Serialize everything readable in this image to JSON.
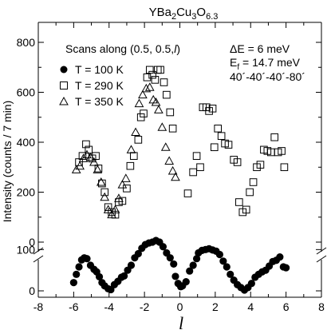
{
  "chart_data": {
    "type": "scatter",
    "title": {
      "base": "YBa",
      "s1": "2",
      "mid1": "Cu",
      "s2": "3",
      "mid2": "O",
      "s3": "6.3"
    },
    "xlabel": "l",
    "ylabel": "Intensity (counts / 7 min)",
    "xlim": [
      -8,
      8
    ],
    "x_ticks": [
      -8,
      -6,
      -4,
      -2,
      0,
      2,
      4,
      6,
      8
    ],
    "upper_panel": {
      "ylim": [
        0,
        880
      ],
      "y_ticks": [
        0,
        200,
        400,
        600,
        800
      ]
    },
    "lower_panel": {
      "ylim": [
        0,
        120
      ],
      "y_ticks": [
        0,
        100
      ]
    },
    "annotations": {
      "scan": "Scans along (0.5, 0.5,",
      "scan_l": "l",
      "scan_end": ")",
      "de_label": "ΔE = 6 meV",
      "ef_base": "E",
      "ef_sub": "f",
      "ef_rest": "  = 14.7 meV",
      "collim": "40´-40´-40´-80´"
    },
    "series": [
      {
        "name": "T = 100 K",
        "marker": "filled-circle",
        "panel": "lower",
        "points": [
          [
            -6.0,
            20
          ],
          [
            -5.85,
            40
          ],
          [
            -5.7,
            58
          ],
          [
            -5.55,
            75
          ],
          [
            -5.4,
            80
          ],
          [
            -5.25,
            78
          ],
          [
            -5.05,
            62
          ],
          [
            -4.85,
            52
          ],
          [
            -4.7,
            46
          ],
          [
            -4.55,
            34
          ],
          [
            -4.4,
            20
          ],
          [
            -4.25,
            12
          ],
          [
            -4.05,
            5
          ],
          [
            -3.9,
            3
          ],
          [
            -3.7,
            15
          ],
          [
            -3.5,
            23
          ],
          [
            -3.3,
            33
          ],
          [
            -3.15,
            36
          ],
          [
            -2.95,
            50
          ],
          [
            -2.75,
            62
          ],
          [
            -2.55,
            80
          ],
          [
            -2.35,
            90
          ],
          [
            -2.15,
            103
          ],
          [
            -1.95,
            112
          ],
          [
            -1.75,
            116
          ],
          [
            -1.55,
            118
          ],
          [
            -1.35,
            122
          ],
          [
            -1.15,
            118
          ],
          [
            -0.95,
            107
          ],
          [
            -0.75,
            92
          ],
          [
            -0.55,
            80
          ],
          [
            -0.35,
            65
          ],
          [
            -0.25,
            35
          ],
          [
            -0.1,
            18
          ],
          [
            0.05,
            10
          ],
          [
            0.15,
            12
          ],
          [
            0.35,
            22
          ],
          [
            0.55,
            48
          ],
          [
            0.75,
            62
          ],
          [
            0.95,
            78
          ],
          [
            1.05,
            92
          ],
          [
            1.25,
            98
          ],
          [
            1.45,
            100
          ],
          [
            1.65,
            102
          ],
          [
            1.85,
            99
          ],
          [
            2.05,
            96
          ],
          [
            2.25,
            88
          ],
          [
            2.45,
            72
          ],
          [
            2.65,
            58
          ],
          [
            2.85,
            40
          ],
          [
            3.05,
            26
          ],
          [
            3.25,
            15
          ],
          [
            3.45,
            8
          ],
          [
            3.65,
            2
          ],
          [
            3.85,
            8
          ],
          [
            4.05,
            18
          ],
          [
            4.25,
            33
          ],
          [
            4.45,
            40
          ],
          [
            4.65,
            46
          ],
          [
            4.85,
            50
          ],
          [
            5.05,
            60
          ],
          [
            5.25,
            71
          ],
          [
            5.45,
            74
          ],
          [
            5.65,
            82
          ],
          [
            5.85,
            58
          ],
          [
            6.0,
            56
          ]
        ]
      },
      {
        "name": "T = 290 K",
        "marker": "open-square",
        "panel": "upper",
        "points": [
          [
            -5.7,
            320
          ],
          [
            -5.5,
            345
          ],
          [
            -5.3,
            392
          ],
          [
            -5.15,
            370
          ],
          [
            -4.95,
            335
          ],
          [
            -4.75,
            345
          ],
          [
            -4.6,
            295
          ],
          [
            -4.4,
            235
          ],
          [
            -4.25,
            200
          ],
          [
            -4.05,
            140
          ],
          [
            -3.85,
            120
          ],
          [
            -3.65,
            110
          ],
          [
            -3.45,
            160
          ],
          [
            -3.25,
            165
          ],
          [
            -3.0,
            215
          ],
          [
            -2.8,
            305
          ],
          [
            -2.6,
            345
          ],
          [
            -2.35,
            410
          ],
          [
            -2.2,
            500
          ],
          [
            -2.05,
            515
          ],
          [
            -1.85,
            660
          ],
          [
            -1.7,
            690
          ],
          [
            -1.55,
            670
          ],
          [
            -1.4,
            650
          ],
          [
            -1.25,
            690
          ],
          [
            -1.1,
            690
          ],
          [
            -0.9,
            640
          ],
          [
            -0.75,
            590
          ],
          [
            -0.55,
            520
          ],
          [
            -0.4,
            455
          ],
          [
            0.45,
            195
          ],
          [
            0.75,
            280
          ],
          [
            0.95,
            345
          ],
          [
            1.15,
            300
          ],
          [
            1.3,
            540
          ],
          [
            1.5,
            540
          ],
          [
            1.65,
            525
          ],
          [
            1.85,
            535
          ],
          [
            1.95,
            380
          ],
          [
            2.15,
            455
          ],
          [
            2.35,
            425
          ],
          [
            2.55,
            395
          ],
          [
            2.75,
            390
          ],
          [
            3.05,
            330
          ],
          [
            3.25,
            320
          ],
          [
            3.35,
            160
          ],
          [
            3.55,
            120
          ],
          [
            3.75,
            130
          ],
          [
            3.95,
            200
          ],
          [
            4.15,
            240
          ],
          [
            4.35,
            300
          ],
          [
            4.55,
            310
          ],
          [
            4.75,
            370
          ],
          [
            4.95,
            365
          ],
          [
            5.15,
            360
          ],
          [
            5.35,
            420
          ],
          [
            5.55,
            360
          ],
          [
            5.75,
            365
          ],
          [
            5.9,
            300
          ]
        ]
      },
      {
        "name": "T = 350 K",
        "marker": "open-triangle",
        "panel": "upper",
        "points": [
          [
            -5.85,
            290
          ],
          [
            -5.65,
            305
          ],
          [
            -5.45,
            335
          ],
          [
            -5.25,
            350
          ],
          [
            -5.05,
            340
          ],
          [
            -4.85,
            320
          ],
          [
            -4.65,
            290
          ],
          [
            -4.45,
            240
          ],
          [
            -4.25,
            180
          ],
          [
            -4.05,
            130
          ],
          [
            -3.85,
            110
          ],
          [
            -3.65,
            130
          ],
          [
            -3.45,
            175
          ],
          [
            -3.25,
            230
          ],
          [
            -3.05,
            255
          ],
          [
            -2.75,
            370
          ],
          [
            -2.5,
            440
          ],
          [
            -2.3,
            555
          ],
          [
            -2.1,
            590
          ],
          [
            -1.9,
            615
          ],
          [
            -1.7,
            620
          ],
          [
            -1.5,
            570
          ],
          [
            -1.35,
            560
          ],
          [
            -1.2,
            530
          ],
          [
            -1.0,
            460
          ],
          [
            -0.8,
            380
          ],
          [
            -0.6,
            325
          ],
          [
            -0.4,
            285
          ],
          [
            -0.25,
            260
          ]
        ]
      }
    ]
  }
}
